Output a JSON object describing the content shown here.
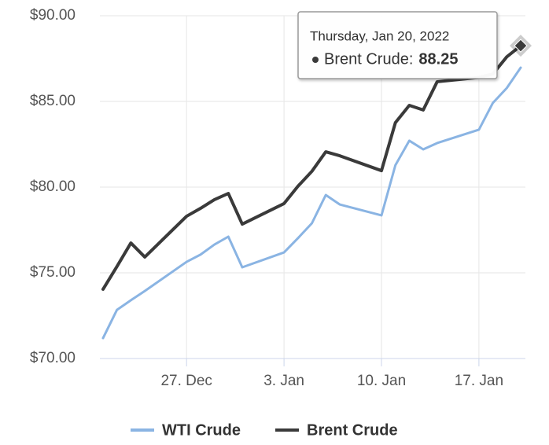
{
  "chart_data": {
    "type": "line",
    "x": [
      "2021-12-21",
      "2021-12-22",
      "2021-12-23",
      "2021-12-24",
      "2021-12-27",
      "2021-12-28",
      "2021-12-29",
      "2021-12-30",
      "2021-12-31",
      "2022-01-03",
      "2022-01-04",
      "2022-01-05",
      "2022-01-06",
      "2022-01-07",
      "2022-01-10",
      "2022-01-11",
      "2022-01-12",
      "2022-01-13",
      "2022-01-14",
      "2022-01-17",
      "2022-01-18",
      "2022-01-19",
      "2022-01-20"
    ],
    "series": [
      {
        "name": "WTI Crude",
        "color": "#8ab4e3",
        "values": [
          71.19,
          72.84,
          73.4,
          73.94,
          75.64,
          76.06,
          76.65,
          77.11,
          75.32,
          76.19,
          77.02,
          77.89,
          79.54,
          78.99,
          78.35,
          81.28,
          82.71,
          82.2,
          82.57,
          83.35,
          84.91,
          85.78,
          86.97
        ]
      },
      {
        "name": "Brent Crude",
        "color": "#3a3a3a",
        "values": [
          74.04,
          75.37,
          76.74,
          75.92,
          78.3,
          78.76,
          79.27,
          79.63,
          77.84,
          79.04,
          80.05,
          80.92,
          82.06,
          81.83,
          80.96,
          83.76,
          84.77,
          84.5,
          86.15,
          86.4,
          86.6,
          87.6,
          88.25
        ]
      }
    ],
    "xlim": [
      "2021-12-21",
      "2022-01-20"
    ],
    "xticks": [
      {
        "value": "2021-12-27",
        "label": "27. Dec"
      },
      {
        "value": "2022-01-03",
        "label": "3. Jan"
      },
      {
        "value": "2022-01-10",
        "label": "10. Jan"
      },
      {
        "value": "2022-01-17",
        "label": "17. Jan"
      }
    ],
    "ylim": [
      70,
      90
    ],
    "yticks": [
      {
        "value": 70,
        "label": "$70.00"
      },
      {
        "value": 75,
        "label": "$75.00"
      },
      {
        "value": 80,
        "label": "$80.00"
      },
      {
        "value": 85,
        "label": "$85.00"
      },
      {
        "value": 90,
        "label": "$90.00"
      }
    ],
    "grid": true,
    "legend": "bottom",
    "tooltip": {
      "header": "Thursday, Jan 20, 2022",
      "label": "Brent Crude:",
      "series": 1,
      "index": 22
    }
  }
}
